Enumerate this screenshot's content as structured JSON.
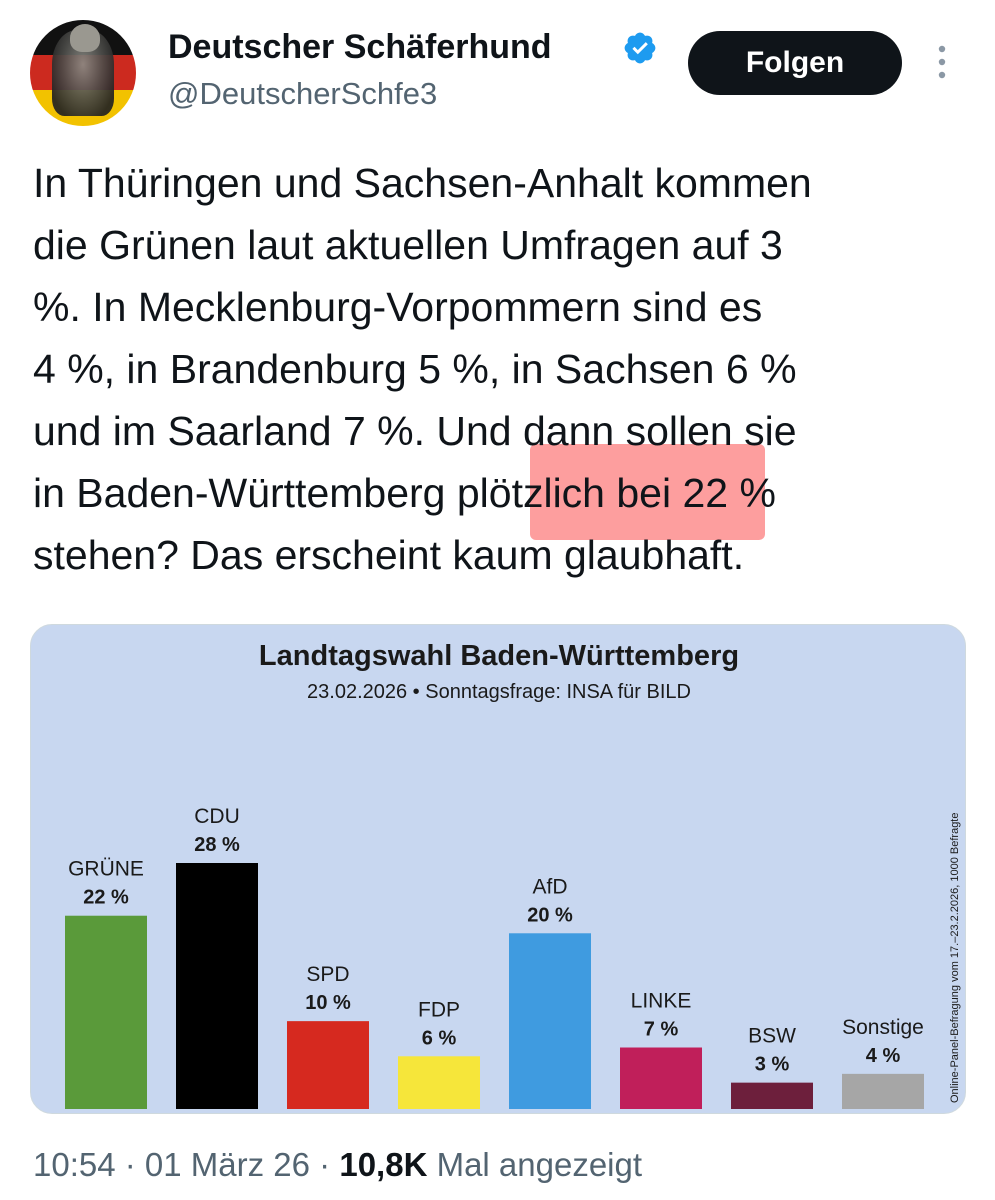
{
  "author": {
    "display_name": "Deutscher Schäferhund",
    "handle": "@DeutscherSchfe3",
    "verified": true,
    "avatar_icon": "flag-avatar-icon"
  },
  "actions": {
    "follow_label": "Folgen",
    "more_icon": "more-vertical-icon"
  },
  "tweet": {
    "lines": [
      "In Thüringen und Sachsen-Anhalt kommen",
      "die Grünen laut aktuellen Umfragen auf 3",
      "%. In Mecklenburg-Vorpommern sind es",
      "4 %, in Brandenburg 5 %, in Sachsen 6 %",
      "und im Saarland 7 %. Und dann sollen sie",
      "in Baden-Württemberg plötzlich bei 22 %",
      "stehen? Das erscheint kaum glaubhaft."
    ],
    "highlight_color": "#fa2828"
  },
  "chart_data": {
    "type": "bar",
    "title": "Landtagswahl Baden-Württemberg",
    "subtitle": "23.02.2026 • Sonntagsfrage: INSA für BILD",
    "source_note": "Online-Panel-Befragung vom 17.–23.2.2026, 1000 Befragte",
    "categories": [
      "GRÜNE",
      "CDU",
      "SPD",
      "FDP",
      "AfD",
      "LINKE",
      "BSW",
      "Sonstige"
    ],
    "values": [
      22,
      28,
      10,
      6,
      20,
      7,
      3,
      4
    ],
    "value_labels": [
      "22 %",
      "28 %",
      "10 %",
      "6 %",
      "20 %",
      "7 %",
      "3 %",
      "4 %"
    ],
    "colors": [
      "#5a9a3a",
      "#000000",
      "#d6291f",
      "#f6e63a",
      "#3f9be0",
      "#c01f5a",
      "#6d1f3c",
      "#a6a6a6"
    ],
    "background": "#c8d7f0",
    "unit": "%",
    "ylim": [
      0,
      28
    ]
  },
  "footer": {
    "time": "10:54",
    "separator": " · ",
    "date": "01 März 26",
    "views_count": "10,8K",
    "views_label": " Mal angezeigt"
  }
}
